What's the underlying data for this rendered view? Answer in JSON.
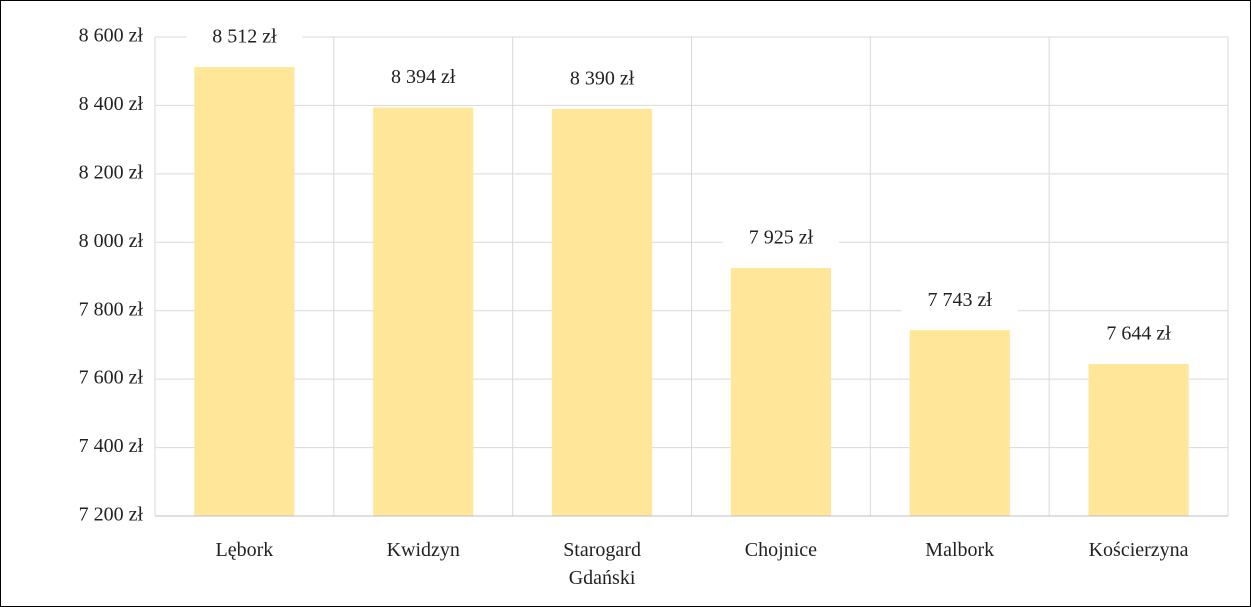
{
  "chart_data": {
    "type": "bar",
    "categories": [
      "Lębork",
      "Kwidzyn",
      "Starogard Gdański",
      "Chojnice",
      "Malbork",
      "Kościerzyna"
    ],
    "values": [
      8512,
      8394,
      8390,
      7925,
      7743,
      7644
    ],
    "value_labels": [
      "8 512 zł",
      "8 394 zł",
      "8 390 zł",
      "7 925 zł",
      "7 743 zł",
      "7 644 zł"
    ],
    "color": "#ffe699",
    "ylim": [
      7200,
      8600
    ],
    "yticks": [
      {
        "value": 7200,
        "label": "7 200 zł"
      },
      {
        "value": 7400,
        "label": "7 400 zł"
      },
      {
        "value": 7600,
        "label": "7 600 zł"
      },
      {
        "value": 7800,
        "label": "7 800 zł"
      },
      {
        "value": 8000,
        "label": "8 000 zł"
      },
      {
        "value": 8200,
        "label": "8 200 zł"
      },
      {
        "value": 8400,
        "label": "8 400 zł"
      },
      {
        "value": 8600,
        "label": "8 600 zł"
      }
    ],
    "grid": true
  }
}
